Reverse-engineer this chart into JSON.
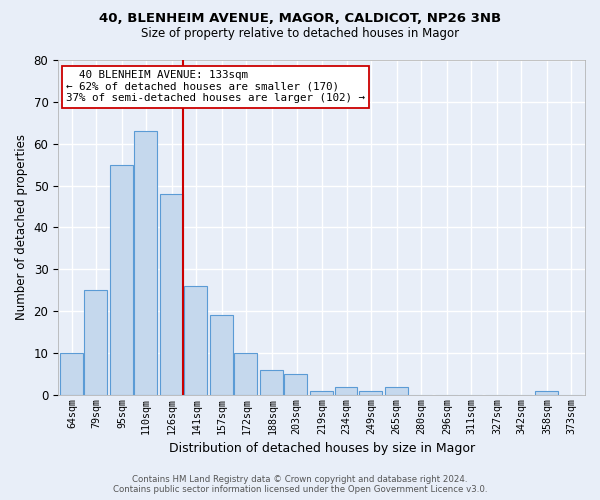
{
  "title1": "40, BLENHEIM AVENUE, MAGOR, CALDICOT, NP26 3NB",
  "title2": "Size of property relative to detached houses in Magor",
  "xlabel": "Distribution of detached houses by size in Magor",
  "ylabel": "Number of detached properties",
  "bin_labels": [
    "64sqm",
    "79sqm",
    "95sqm",
    "110sqm",
    "126sqm",
    "141sqm",
    "157sqm",
    "172sqm",
    "188sqm",
    "203sqm",
    "219sqm",
    "234sqm",
    "249sqm",
    "265sqm",
    "280sqm",
    "296sqm",
    "311sqm",
    "327sqm",
    "342sqm",
    "358sqm",
    "373sqm"
  ],
  "bin_values": [
    10,
    25,
    55,
    63,
    48,
    26,
    19,
    10,
    6,
    5,
    1,
    2,
    1,
    2,
    0,
    0,
    0,
    0,
    0,
    1,
    0
  ],
  "bin_width": 15,
  "bar_color": "#c5d8ed",
  "bar_edge_color": "#5b9bd5",
  "vline_x": 133,
  "vline_color": "#cc0000",
  "annotation_line1": "  40 BLENHEIM AVENUE: 133sqm",
  "annotation_line2": "← 62% of detached houses are smaller (170)",
  "annotation_line3": "37% of semi-detached houses are larger (102) →",
  "annotation_box_color": "white",
  "annotation_box_edge": "#cc0000",
  "ylim": [
    0,
    80
  ],
  "yticks": [
    0,
    10,
    20,
    30,
    40,
    50,
    60,
    70,
    80
  ],
  "footer1": "Contains HM Land Registry data © Crown copyright and database right 2024.",
  "footer2": "Contains public sector information licensed under the Open Government Licence v3.0.",
  "background_color": "#e8eef8",
  "grid_color": "#ffffff"
}
